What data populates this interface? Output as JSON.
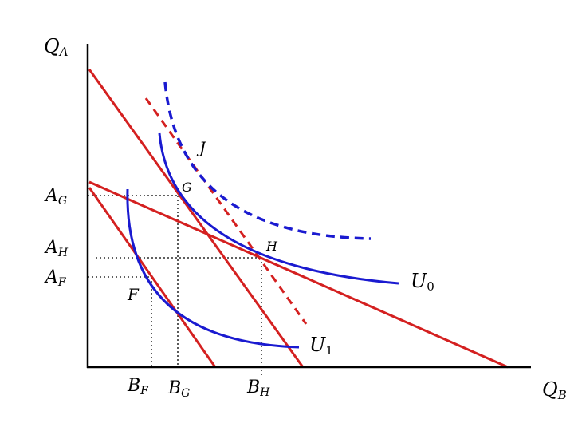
{
  "diagram": {
    "axes": {
      "y_label_main": "Q",
      "y_label_sub": "A",
      "x_label_main": "Q",
      "x_label_sub": "B"
    },
    "y_ticks": [
      {
        "main": "A",
        "sub": "G"
      },
      {
        "main": "A",
        "sub": "H"
      },
      {
        "main": "A",
        "sub": "F"
      }
    ],
    "x_ticks": [
      {
        "main": "B",
        "sub": "F"
      },
      {
        "main": "B",
        "sub": "G"
      },
      {
        "main": "B",
        "sub": "H"
      }
    ],
    "points": {
      "J": "J",
      "G": "G",
      "H": "H",
      "F": "F"
    },
    "curves": {
      "u0_main": "U",
      "u0_sub": "0",
      "u1_main": "U",
      "u1_sub": "1"
    },
    "colors": {
      "budget_lines": "#d42020",
      "indifference_curves": "#1a1ad0",
      "axes": "#000000"
    }
  }
}
